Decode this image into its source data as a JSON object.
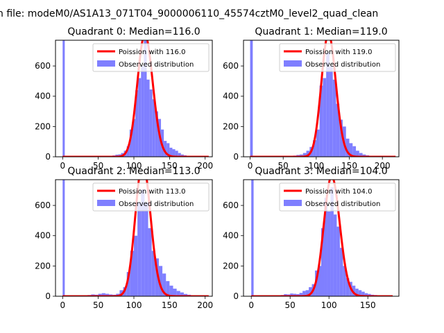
{
  "suptitle": "n file: modeM0/AS1A13_071T04_9000006110_45574cztM0_level2_quad_clean",
  "colors": {
    "observed": "#7f7fff",
    "poisson": "#ff0000",
    "frame": "#000000"
  },
  "chart_data": [
    {
      "type": "bar",
      "title": "Quadrant 0: Median=116.0",
      "xlim": [
        -10,
        210
      ],
      "ylim": [
        0,
        770
      ],
      "xticks": [
        0,
        50,
        100,
        150,
        200
      ],
      "yticks": [
        0,
        200,
        400,
        600
      ],
      "legend_placement": "top-right",
      "series": [
        {
          "name": "Poission with 116.0",
          "kind": "line",
          "mean": 116.0,
          "x_range": [
            0,
            205
          ]
        },
        {
          "name": "Observed distribution",
          "kind": "histogram",
          "bins": [
            [
              0,
              3,
              770
            ],
            [
              30,
              34,
              3
            ],
            [
              34,
              38,
              3
            ],
            [
              38,
              42,
              2
            ],
            [
              42,
              46,
              4
            ],
            [
              46,
              50,
              4
            ],
            [
              50,
              54,
              3
            ],
            [
              54,
              58,
              4
            ],
            [
              58,
              62,
              5
            ],
            [
              62,
              66,
              4
            ],
            [
              66,
              70,
              6
            ],
            [
              70,
              74,
              9
            ],
            [
              74,
              78,
              14
            ],
            [
              78,
              82,
              16
            ],
            [
              82,
              86,
              25
            ],
            [
              86,
              90,
              40
            ],
            [
              90,
              94,
              70
            ],
            [
              94,
              98,
              180
            ],
            [
              98,
              102,
              250
            ],
            [
              102,
              106,
              440
            ],
            [
              106,
              110,
              520
            ],
            [
              110,
              114,
              600
            ],
            [
              114,
              118,
              780
            ],
            [
              118,
              122,
              510
            ],
            [
              122,
              126,
              445
            ],
            [
              126,
              130,
              380
            ],
            [
              130,
              134,
              300
            ],
            [
              134,
              138,
              250
            ],
            [
              138,
              142,
              180
            ],
            [
              142,
              146,
              105
            ],
            [
              146,
              150,
              90
            ],
            [
              150,
              154,
              60
            ],
            [
              154,
              158,
              50
            ],
            [
              158,
              162,
              40
            ],
            [
              162,
              166,
              25
            ],
            [
              166,
              170,
              15
            ],
            [
              170,
              174,
              10
            ],
            [
              174,
              178,
              7
            ],
            [
              178,
              182,
              4
            ],
            [
              182,
              186,
              3
            ],
            [
              186,
              190,
              2
            ],
            [
              190,
              194,
              2
            ],
            [
              194,
              198,
              1
            ],
            [
              198,
              202,
              1
            ]
          ]
        }
      ]
    },
    {
      "type": "bar",
      "title": "Quadrant 1: Median=119.0",
      "xlim": [
        -10,
        225
      ],
      "ylim": [
        0,
        770
      ],
      "xticks": [
        0,
        50,
        100,
        150,
        200
      ],
      "yticks": [
        0,
        200,
        400,
        600
      ],
      "legend_placement": "top-right",
      "series": [
        {
          "name": "Poission with 119.0",
          "kind": "line",
          "mean": 119.0,
          "x_range": [
            0,
            220
          ]
        },
        {
          "name": "Observed distribution",
          "kind": "histogram",
          "bins": [
            [
              0,
              4,
              770
            ],
            [
              40,
              45,
              2
            ],
            [
              45,
              50,
              3
            ],
            [
              50,
              55,
              3
            ],
            [
              55,
              60,
              4
            ],
            [
              60,
              65,
              6
            ],
            [
              65,
              70,
              8
            ],
            [
              70,
              75,
              12
            ],
            [
              75,
              80,
              15
            ],
            [
              80,
              85,
              25
            ],
            [
              85,
              90,
              40
            ],
            [
              90,
              95,
              65
            ],
            [
              95,
              100,
              110
            ],
            [
              100,
              105,
              180
            ],
            [
              105,
              110,
              470
            ],
            [
              110,
              115,
              520
            ],
            [
              115,
              120,
              690
            ],
            [
              120,
              125,
              600
            ],
            [
              125,
              130,
              510
            ],
            [
              130,
              135,
              350
            ],
            [
              135,
              140,
              245
            ],
            [
              140,
              145,
              200
            ],
            [
              145,
              150,
              120
            ],
            [
              150,
              155,
              90
            ],
            [
              155,
              160,
              70
            ],
            [
              160,
              165,
              40
            ],
            [
              165,
              170,
              25
            ],
            [
              170,
              175,
              15
            ],
            [
              175,
              180,
              10
            ],
            [
              180,
              185,
              6
            ],
            [
              185,
              190,
              4
            ],
            [
              190,
              195,
              3
            ],
            [
              195,
              200,
              2
            ],
            [
              200,
              205,
              1
            ]
          ]
        }
      ]
    },
    {
      "type": "bar",
      "title": "Quadrant 2: Median=113.0",
      "xlim": [
        -10,
        210
      ],
      "ylim": [
        0,
        770
      ],
      "xticks": [
        0,
        50,
        100,
        150,
        200
      ],
      "yticks": [
        0,
        200,
        400,
        600
      ],
      "legend_placement": "top-right",
      "series": [
        {
          "name": "Poission with 113.0",
          "kind": "line",
          "mean": 113.0,
          "x_range": [
            0,
            205
          ]
        },
        {
          "name": "Observed distribution",
          "kind": "histogram",
          "bins": [
            [
              0,
              3,
              770
            ],
            [
              20,
              25,
              3
            ],
            [
              25,
              30,
              3
            ],
            [
              30,
              35,
              5
            ],
            [
              35,
              40,
              8
            ],
            [
              40,
              45,
              12
            ],
            [
              45,
              50,
              10
            ],
            [
              50,
              55,
              16
            ],
            [
              55,
              60,
              20
            ],
            [
              60,
              65,
              16
            ],
            [
              65,
              70,
              12
            ],
            [
              70,
              75,
              10
            ],
            [
              75,
              80,
              16
            ],
            [
              80,
              85,
              40
            ],
            [
              85,
              90,
              60
            ],
            [
              90,
              95,
              160
            ],
            [
              95,
              100,
              300
            ],
            [
              100,
              105,
              400
            ],
            [
              105,
              110,
              620
            ],
            [
              110,
              115,
              705
            ],
            [
              115,
              120,
              620
            ],
            [
              120,
              125,
              450
            ],
            [
              125,
              130,
              300
            ],
            [
              130,
              135,
              250
            ],
            [
              135,
              140,
              200
            ],
            [
              140,
              145,
              150
            ],
            [
              145,
              150,
              100
            ],
            [
              150,
              155,
              70
            ],
            [
              155,
              160,
              50
            ],
            [
              160,
              165,
              35
            ],
            [
              165,
              170,
              25
            ],
            [
              170,
              175,
              15
            ],
            [
              175,
              180,
              10
            ],
            [
              180,
              185,
              5
            ],
            [
              185,
              190,
              3
            ],
            [
              190,
              195,
              2
            ],
            [
              195,
              200,
              1
            ]
          ]
        }
      ]
    },
    {
      "type": "bar",
      "title": "Quadrant 3: Median=104.0",
      "xlim": [
        -10,
        190
      ],
      "ylim": [
        0,
        770
      ],
      "xticks": [
        0,
        50,
        100,
        150
      ],
      "yticks": [
        0,
        200,
        400,
        600
      ],
      "legend_placement": "top-right",
      "series": [
        {
          "name": "Poission with 104.0",
          "kind": "line",
          "mean": 104.0,
          "x_range": [
            0,
            182
          ]
        },
        {
          "name": "Observed distribution",
          "kind": "histogram",
          "bins": [
            [
              0,
              3,
              770
            ],
            [
              30,
              34,
              4
            ],
            [
              34,
              38,
              6
            ],
            [
              38,
              42,
              8
            ],
            [
              42,
              46,
              14
            ],
            [
              46,
              50,
              12
            ],
            [
              50,
              54,
              18
            ],
            [
              54,
              58,
              16
            ],
            [
              58,
              62,
              14
            ],
            [
              62,
              66,
              22
            ],
            [
              66,
              70,
              35
            ],
            [
              70,
              74,
              40
            ],
            [
              74,
              78,
              60
            ],
            [
              78,
              82,
              80
            ],
            [
              82,
              86,
              170
            ],
            [
              86,
              90,
              200
            ],
            [
              90,
              94,
              450
            ],
            [
              94,
              98,
              650
            ],
            [
              98,
              102,
              560
            ],
            [
              102,
              106,
              720
            ],
            [
              106,
              110,
              540
            ],
            [
              110,
              114,
              460
            ],
            [
              114,
              118,
              320
            ],
            [
              118,
              122,
              200
            ],
            [
              122,
              126,
              120
            ],
            [
              126,
              130,
              95
            ],
            [
              130,
              134,
              70
            ],
            [
              134,
              138,
              50
            ],
            [
              138,
              142,
              40
            ],
            [
              142,
              146,
              30
            ],
            [
              146,
              150,
              20
            ],
            [
              150,
              154,
              15
            ],
            [
              154,
              158,
              10
            ],
            [
              158,
              162,
              8
            ],
            [
              162,
              166,
              4
            ],
            [
              166,
              170,
              3
            ]
          ]
        }
      ]
    }
  ]
}
